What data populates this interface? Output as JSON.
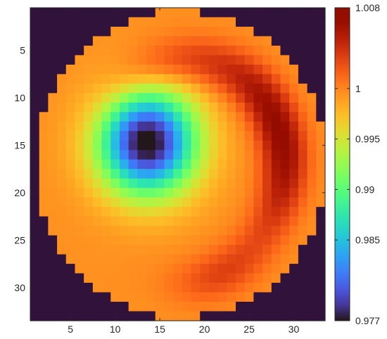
{
  "chart_data": {
    "type": "heatmap",
    "title": "",
    "xlabel": "",
    "ylabel": "",
    "grid": false,
    "rows": 33,
    "cols": 33,
    "xlim": [
      0.5,
      33.5
    ],
    "ylim": [
      0.5,
      33.5
    ],
    "y_reversed": true,
    "x_ticks": [
      5,
      10,
      15,
      20,
      25,
      30
    ],
    "y_ticks": [
      5,
      10,
      15,
      20,
      25,
      30
    ],
    "mask_color": "#30123b",
    "mask": {
      "center_row": 17,
      "center_col": 17.4,
      "radius_cells": 16.2
    },
    "field": {
      "base_value": 0.9995,
      "dip": {
        "center_row": 14.7,
        "center_col": 13.6,
        "depth": 0.0235,
        "sigma_cells": 3.8
      },
      "ridges": [
        {
          "center_row": 17,
          "center_col": 17.4,
          "radius_cells": 11.5,
          "angle_deg": 15,
          "angular_width_deg": 55,
          "amplitude": 0.0075
        },
        {
          "center_row": 17,
          "center_col": 17.4,
          "radius_cells": 10.5,
          "angle_deg": 100,
          "angular_width_deg": 45,
          "amplitude": 0.003
        },
        {
          "center_row": 17,
          "center_col": 17.4,
          "radius_cells": 12.5,
          "angle_deg": -70,
          "angular_width_deg": 25,
          "amplitude": 0.003
        }
      ]
    },
    "colorbar": {
      "min": 0.977,
      "max": 1.008,
      "colormap": "turbo",
      "ticks": [
        {
          "value": 1.008,
          "label": "1.008"
        },
        {
          "value": 1.0,
          "label": "1"
        },
        {
          "value": 0.995,
          "label": "0.995"
        },
        {
          "value": 0.99,
          "label": "0.99"
        },
        {
          "value": 0.985,
          "label": "0.985"
        },
        {
          "value": 0.977,
          "label": "0.977"
        }
      ]
    }
  }
}
